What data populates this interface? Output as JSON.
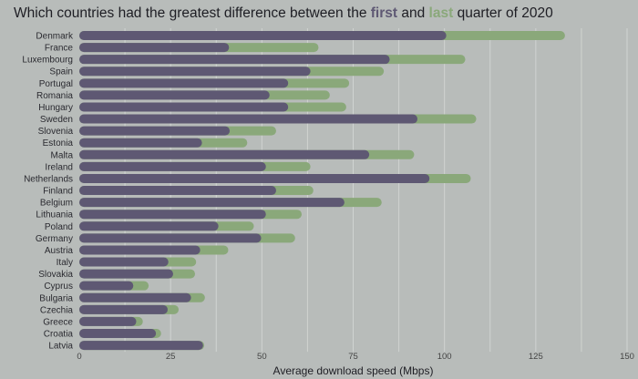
{
  "chart_data": {
    "type": "bar",
    "orientation": "horizontal",
    "title": {
      "prefix": "Which countries had the greatest difference between the ",
      "first": "first",
      "middle": " and ",
      "last": "last",
      "suffix": " quarter of 2020"
    },
    "xlabel": "Average download speed (Mbps)",
    "xlim": [
      0,
      150
    ],
    "xticks": [
      0,
      25,
      50,
      75,
      100,
      125,
      150
    ],
    "grid": true,
    "colors": {
      "first": "#5e5873",
      "last": "#8aa87a",
      "background": "#b8bcba",
      "grid": "#d0d3d1"
    },
    "categories": [
      "Denmark",
      "France",
      "Luxembourg",
      "Spain",
      "Portugal",
      "Romania",
      "Hungary",
      "Sweden",
      "Slovenia",
      "Estonia",
      "Malta",
      "Ireland",
      "Netherlands",
      "Finland",
      "Belgium",
      "Lithuania",
      "Poland",
      "Germany",
      "Austria",
      "Italy",
      "Slovakia",
      "Cyprus",
      "Bulgaria",
      "Czechia",
      "Greece",
      "Croatia",
      "Latvia"
    ],
    "series": [
      {
        "name": "first",
        "values": [
          100.5,
          41,
          85,
          63.3,
          57.2,
          52.1,
          57.2,
          92.6,
          41.2,
          33.6,
          79.4,
          51.1,
          95.9,
          53.9,
          72.6,
          51.1,
          38.1,
          49.8,
          33.1,
          24.4,
          25.7,
          14.8,
          30.6,
          24.2,
          15.6,
          21,
          33.9
        ]
      },
      {
        "name": "last",
        "values": [
          133,
          65.5,
          105.7,
          83.4,
          73.9,
          68.6,
          73.1,
          108.7,
          53.9,
          46,
          91.7,
          63.3,
          107.2,
          64.1,
          82.8,
          60.9,
          47.8,
          59.1,
          40.8,
          32,
          31.7,
          19,
          34.4,
          27.2,
          17.4,
          22.4,
          34.2
        ]
      }
    ]
  }
}
